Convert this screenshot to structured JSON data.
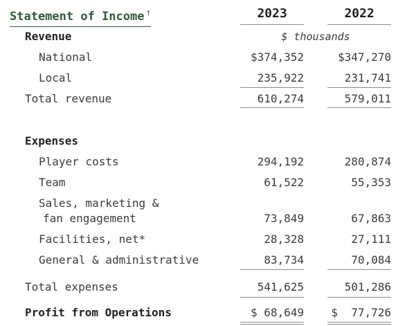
{
  "title": "Statement of Income",
  "title_mark": "†",
  "years": [
    "2023",
    "2022"
  ],
  "units": "$ thousands",
  "revenue": {
    "heading": "Revenue",
    "national": {
      "label": "National",
      "v2023": "$374,352",
      "v2022": "$347,270"
    },
    "local": {
      "label": "Local",
      "v2023": "235,922",
      "v2022": "231,741"
    },
    "total": {
      "label": "Total revenue",
      "v2023": "610,274",
      "v2022": "579,011"
    }
  },
  "expenses": {
    "heading": "Expenses",
    "player_costs": {
      "label": "Player costs",
      "v2023": "294,192",
      "v2022": "280,874"
    },
    "team": {
      "label": "Team",
      "v2023": "61,522",
      "v2022": "55,353"
    },
    "sales": {
      "label_line1": "Sales, marketing &",
      "label_line2": "fan engagement",
      "v2023": "73,849",
      "v2022": "67,863"
    },
    "facilities": {
      "label": "Facilities, net*",
      "v2023": "28,328",
      "v2022": "27,111"
    },
    "general": {
      "label": "General & administrative",
      "v2023": "83,734",
      "v2022": "70,084"
    },
    "total": {
      "label": "Total expenses",
      "v2023": "541,625",
      "v2022": "501,286"
    }
  },
  "profit": {
    "label": "Profit from Operations",
    "v2023": "$ 68,649",
    "v2022": "$  77,726"
  }
}
